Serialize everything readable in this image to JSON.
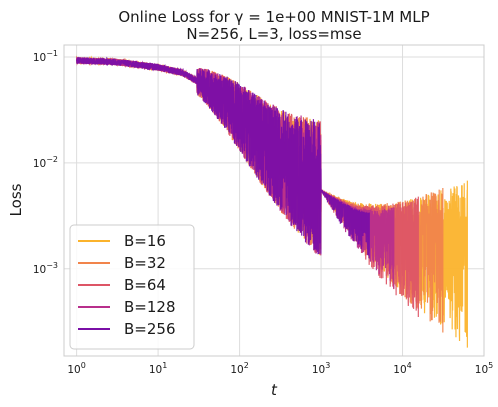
{
  "chart_data": {
    "type": "line",
    "title_line1": "Online Loss for γ = 1e+00 MNIST-1M MLP",
    "title_line2": "N=256, L=3, loss=mse",
    "xlabel": "t",
    "ylabel": "Loss",
    "xscale": "log",
    "yscale": "log",
    "xlim": [
      0.7,
      100000
    ],
    "ylim": [
      0.00015,
      0.13
    ],
    "grid": true,
    "legend_position": "lower-left",
    "x_ticks": [
      {
        "base": "10",
        "exp": "0"
      },
      {
        "base": "10",
        "exp": "1"
      },
      {
        "base": "10",
        "exp": "2"
      },
      {
        "base": "10",
        "exp": "3"
      },
      {
        "base": "10",
        "exp": "4"
      },
      {
        "base": "10",
        "exp": "5"
      }
    ],
    "y_ticks": [
      {
        "base": "10",
        "exp": "−3"
      },
      {
        "base": "10",
        "exp": "−2"
      },
      {
        "base": "10",
        "exp": "−1"
      }
    ],
    "x_tick_values": [
      1,
      10,
      100,
      1000,
      10000,
      100000
    ],
    "y_tick_values": [
      0.001,
      0.01,
      0.1
    ],
    "series": [
      {
        "name": "B=16",
        "color": "#fbb32c",
        "t_end": 62500,
        "noise_lo": 0.00018,
        "noise_hi": 0.0068
      },
      {
        "name": "B=32",
        "color": "#f1844b",
        "t_end": 31250,
        "noise_lo": 0.00025,
        "noise_hi": 0.0058
      },
      {
        "name": "B=64",
        "color": "#dd5566",
        "t_end": 15625,
        "noise_lo": 0.00035,
        "noise_hi": 0.0048
      },
      {
        "name": "B=128",
        "color": "#b82f8c",
        "t_end": 7812,
        "noise_lo": 0.00065,
        "noise_hi": 0.0038
      },
      {
        "name": "B=256",
        "color": "#7a0fa6",
        "t_end": 3906,
        "noise_lo": 0.00125,
        "noise_hi": 0.0034
      }
    ],
    "mean_curve": {
      "t": [
        1,
        3,
        10,
        20,
        40,
        70,
        100,
        200,
        400,
        1000,
        3000,
        10000,
        60000
      ],
      "loss": [
        0.093,
        0.09,
        0.08,
        0.071,
        0.052,
        0.036,
        0.027,
        0.015,
        0.009,
        0.0055,
        0.0035,
        0.0025,
        0.002
      ]
    }
  }
}
